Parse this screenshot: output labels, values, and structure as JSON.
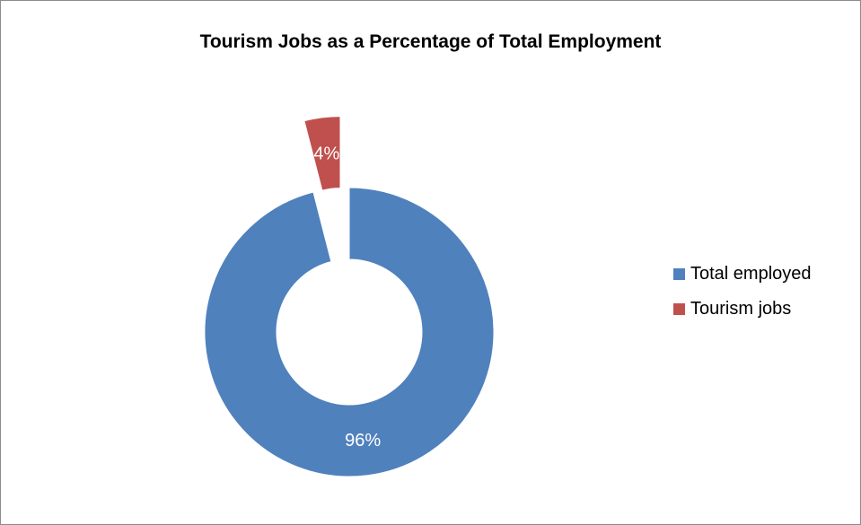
{
  "chart_data": {
    "type": "pie",
    "variant": "doughnut",
    "title": "Tourism Jobs as a Percentage of Total Employment",
    "categories": [
      "Total employed",
      "Tourism jobs"
    ],
    "values": [
      96,
      4
    ],
    "data_labels": [
      "96%",
      "4%"
    ],
    "colors": [
      "#4f81bd",
      "#c0504d"
    ],
    "exploded": [
      false,
      true
    ],
    "legend_position": "right",
    "label_color": "#ffffff"
  }
}
